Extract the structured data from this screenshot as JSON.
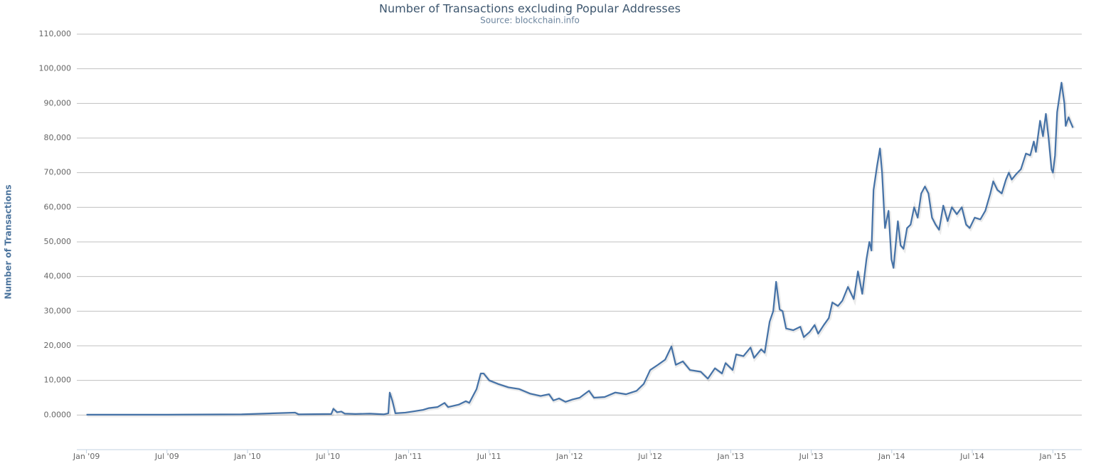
{
  "chart_data": {
    "type": "line",
    "title": "Number of Transactions excluding Popular Addresses",
    "subtitle": "Source: blockchain.info",
    "y_label": "Number of Transactions",
    "x": [
      2009.0,
      2009.5,
      2009.963,
      2010.295,
      2010.317,
      2010.52,
      2010.533,
      2010.556,
      2010.582,
      2010.604,
      2010.67,
      2010.759,
      2010.847,
      2010.874,
      2010.883,
      2010.9,
      2010.918,
      2010.98,
      2011.024,
      2011.09,
      2011.126,
      2011.179,
      2011.223,
      2011.245,
      2011.311,
      2011.355,
      2011.377,
      2011.422,
      2011.448,
      2011.466,
      2011.501,
      2011.554,
      2011.62,
      2011.687,
      2011.753,
      2011.819,
      2011.872,
      2011.899,
      2011.934,
      2011.974,
      2012.018,
      2012.062,
      2012.12,
      2012.151,
      2012.217,
      2012.283,
      2012.35,
      2012.416,
      2012.46,
      2012.5,
      2012.548,
      2012.593,
      2012.632,
      2012.659,
      2012.703,
      2012.747,
      2012.814,
      2012.858,
      2012.902,
      2012.946,
      2012.968,
      2013.012,
      2013.034,
      2013.079,
      2013.123,
      2013.145,
      2013.189,
      2013.211,
      2013.242,
      2013.264,
      2013.282,
      2013.304,
      2013.322,
      2013.344,
      2013.388,
      2013.432,
      2013.454,
      2013.49,
      2013.521,
      2013.543,
      2013.578,
      2013.609,
      2013.631,
      2013.666,
      2013.693,
      2013.728,
      2013.764,
      2013.79,
      2013.817,
      2013.843,
      2013.861,
      2013.874,
      2013.887,
      2013.909,
      2013.927,
      2013.94,
      2013.958,
      2013.98,
      2013.998,
      2014.011,
      2014.038,
      2014.055,
      2014.073,
      2014.095,
      2014.117,
      2014.139,
      2014.161,
      2014.183,
      2014.206,
      2014.228,
      2014.25,
      2014.272,
      2014.294,
      2014.32,
      2014.347,
      2014.373,
      2014.404,
      2014.435,
      2014.462,
      2014.484,
      2014.515,
      2014.55,
      2014.581,
      2014.612,
      2014.63,
      2014.656,
      2014.683,
      2014.709,
      2014.727,
      2014.745,
      2014.771,
      2014.802,
      2014.833,
      2014.86,
      2014.882,
      2014.895,
      2014.921,
      2014.939,
      2014.957,
      2014.974,
      2014.992,
      2015.001,
      2015.014,
      2015.027,
      2015.054,
      2015.072,
      2015.08,
      2015.098,
      2015.111,
      2015.125
    ],
    "series": [
      {
        "color": "#4572a7",
        "values": [
          100,
          100,
          200,
          700,
          200,
          300,
          1800,
          800,
          1000,
          400,
          300,
          400,
          200,
          500,
          6500,
          4000,
          500,
          700,
          1000,
          1500,
          2000,
          2300,
          3500,
          2300,
          3000,
          4000,
          3500,
          7500,
          12000,
          12000,
          10000,
          9000,
          8000,
          7500,
          6200,
          5500,
          6000,
          4200,
          4800,
          3800,
          4500,
          5000,
          7000,
          5000,
          5200,
          6500,
          6000,
          7000,
          9000,
          13000,
          14500,
          16000,
          19800,
          14500,
          15500,
          13000,
          12500,
          10500,
          13500,
          12000,
          15000,
          13000,
          17500,
          17000,
          19500,
          16500,
          19000,
          18000,
          27000,
          30000,
          38500,
          30500,
          30000,
          25000,
          24500,
          25500,
          22500,
          24000,
          26000,
          23500,
          26000,
          28000,
          32500,
          31500,
          33000,
          37000,
          33500,
          41500,
          35000,
          45000,
          50000,
          47500,
          65000,
          72000,
          77000,
          70000,
          54000,
          59000,
          45000,
          42500,
          56000,
          49000,
          48000,
          54000,
          55000,
          60000,
          57000,
          64000,
          66000,
          64000,
          57000,
          55000,
          53500,
          60500,
          56000,
          60000,
          58000,
          60000,
          55000,
          54000,
          57000,
          56500,
          59000,
          64000,
          67500,
          65000,
          64000,
          68000,
          70000,
          68000,
          69500,
          71000,
          75500,
          75000,
          79000,
          76000,
          85000,
          80500,
          87000,
          80000,
          71000,
          70000,
          75000,
          87500,
          96000,
          90000,
          83500,
          86000,
          84500,
          83000
        ]
      }
    ],
    "xlim": [
      2008.94,
      2015.18
    ],
    "xticks": [
      {
        "value": 2009,
        "label": "Jan '09"
      },
      {
        "value": 2009.5,
        "label": "Jul '09"
      },
      {
        "value": 2010,
        "label": "Jan '10"
      },
      {
        "value": 2010.5,
        "label": "Jul '10"
      },
      {
        "value": 2011,
        "label": "Jan '11"
      },
      {
        "value": 2011.5,
        "label": "Jul '11"
      },
      {
        "value": 2012,
        "label": "Jan '12"
      },
      {
        "value": 2012.5,
        "label": "Jul '12"
      },
      {
        "value": 2013,
        "label": "Jan '13"
      },
      {
        "value": 2013.5,
        "label": "Jul '13"
      },
      {
        "value": 2014,
        "label": "Jan '14"
      },
      {
        "value": 2014.5,
        "label": "Jul '14"
      },
      {
        "value": 2015,
        "label": "Jan '15"
      }
    ],
    "ylim": [
      -10000,
      110000
    ],
    "yticks": [
      {
        "value": 0,
        "label": "0.0000"
      },
      {
        "value": 10000,
        "label": "10,000"
      },
      {
        "value": 20000,
        "label": "20,000"
      },
      {
        "value": 30000,
        "label": "30,000"
      },
      {
        "value": 40000,
        "label": "40,000"
      },
      {
        "value": 50000,
        "label": "50,000"
      },
      {
        "value": 60000,
        "label": "60,000"
      },
      {
        "value": 70000,
        "label": "70,000"
      },
      {
        "value": 80000,
        "label": "80,000"
      },
      {
        "value": 90000,
        "label": "90,000"
      },
      {
        "value": 100000,
        "label": "100,000"
      },
      {
        "value": 110000,
        "label": "110,000"
      }
    ],
    "grid": true
  }
}
